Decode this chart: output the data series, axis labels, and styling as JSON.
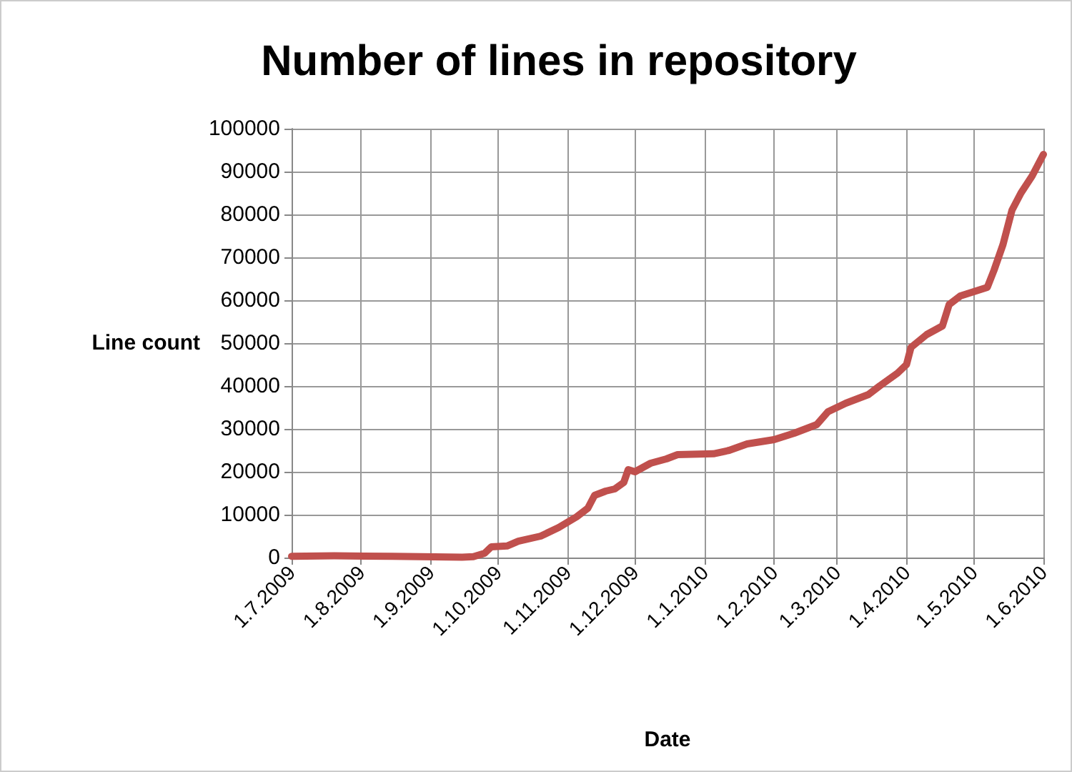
{
  "chart_data": {
    "type": "line",
    "title": "Number of lines in repository",
    "xlabel": "Date",
    "ylabel": "Line count",
    "grid": true,
    "marker": "none",
    "line_style": "solid",
    "x": [
      "2009-07-01",
      "2009-07-20",
      "2009-08-15",
      "2009-09-15",
      "2009-09-20",
      "2009-09-25",
      "2009-09-28",
      "2009-10-05",
      "2009-10-10",
      "2009-10-20",
      "2009-10-28",
      "2009-11-05",
      "2009-11-10",
      "2009-11-13",
      "2009-11-18",
      "2009-11-22",
      "2009-11-26",
      "2009-11-28",
      "2009-12-01",
      "2009-12-08",
      "2009-12-15",
      "2009-12-20",
      "2010-01-05",
      "2010-01-12",
      "2010-01-20",
      "2010-02-01",
      "2010-02-10",
      "2010-02-20",
      "2010-02-25",
      "2010-03-05",
      "2010-03-15",
      "2010-03-20",
      "2010-03-28",
      "2010-04-01",
      "2010-04-03",
      "2010-04-10",
      "2010-04-17",
      "2010-04-20",
      "2010-04-25",
      "2010-05-01",
      "2010-05-07",
      "2010-05-10",
      "2010-05-14",
      "2010-05-18",
      "2010-05-22",
      "2010-05-27",
      "2010-06-01"
    ],
    "series": [
      {
        "color": "#c0504d",
        "values": [
          300,
          400,
          300,
          100,
          200,
          1000,
          2500,
          2700,
          3800,
          5000,
          7000,
          9500,
          11500,
          14500,
          15500,
          16000,
          17500,
          20500,
          20000,
          22000,
          23000,
          24000,
          24200,
          25000,
          26500,
          27500,
          29000,
          31000,
          34000,
          36000,
          38000,
          40000,
          43000,
          45000,
          49000,
          52000,
          54000,
          59000,
          61000,
          62000,
          63000,
          67000,
          73000,
          81000,
          85000,
          89000,
          94000
        ]
      }
    ],
    "xlim": [
      "2009-07-01",
      "2010-06-01"
    ],
    "xticks": [
      {
        "value": "2009-07-01",
        "label": "1.7.2009"
      },
      {
        "value": "2009-08-01",
        "label": "1.8.2009"
      },
      {
        "value": "2009-09-01",
        "label": "1.9.2009"
      },
      {
        "value": "2009-10-01",
        "label": "1.10.2009"
      },
      {
        "value": "2009-11-01",
        "label": "1.11.2009"
      },
      {
        "value": "2009-12-01",
        "label": "1.12.2009"
      },
      {
        "value": "2010-01-01",
        "label": "1.1.2010"
      },
      {
        "value": "2010-02-01",
        "label": "1.2.2010"
      },
      {
        "value": "2010-03-01",
        "label": "1.3.2010"
      },
      {
        "value": "2010-04-01",
        "label": "1.4.2010"
      },
      {
        "value": "2010-05-01",
        "label": "1.5.2010"
      },
      {
        "value": "2010-06-01",
        "label": "1.6.2010"
      }
    ],
    "ylim": [
      0,
      100000
    ],
    "yticks": [
      0,
      10000,
      20000,
      30000,
      40000,
      50000,
      60000,
      70000,
      80000,
      90000,
      100000
    ]
  }
}
